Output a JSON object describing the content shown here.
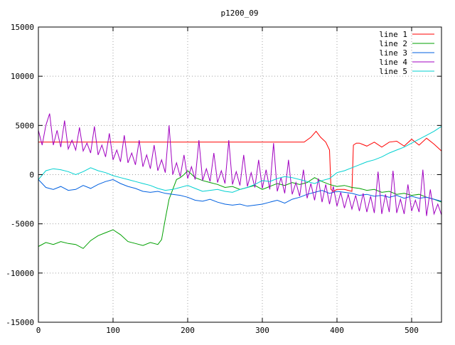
{
  "chart_data": {
    "type": "line",
    "title": "p1200_09",
    "xlabel": "",
    "ylabel": "",
    "xlim": [
      0,
      540
    ],
    "ylim": [
      -15000,
      15000
    ],
    "x_ticks": [
      0,
      100,
      200,
      300,
      400,
      500
    ],
    "y_ticks": [
      -15000,
      -10000,
      -5000,
      0,
      5000,
      10000,
      15000
    ],
    "grid": true,
    "legend_position": "top-right",
    "series": [
      {
        "name": "line 1",
        "color": "#ff0000",
        "x": [
          0,
          350,
          356,
          365,
          372,
          378,
          385,
          390,
          392,
          395,
          400,
          410,
          420,
          422,
          426,
          430,
          440,
          450,
          460,
          470,
          480,
          490,
          500,
          510,
          520,
          530,
          540
        ],
        "y": [
          3300,
          3300,
          3300,
          3800,
          4400,
          3800,
          3300,
          2500,
          -1500,
          -1700,
          -1500,
          -1500,
          -1700,
          3000,
          3200,
          3200,
          2900,
          3300,
          2800,
          3300,
          3400,
          2900,
          3600,
          3000,
          3700,
          3100,
          2400
        ]
      },
      {
        "name": "line 2",
        "color": "#00a000",
        "x": [
          0,
          10,
          20,
          30,
          40,
          50,
          60,
          70,
          80,
          90,
          100,
          110,
          120,
          130,
          140,
          150,
          160,
          165,
          170,
          175,
          180,
          185,
          190,
          195,
          200,
          210,
          220,
          230,
          240,
          250,
          260,
          270,
          280,
          290,
          300,
          310,
          320,
          330,
          340,
          350,
          360,
          370,
          380,
          390,
          400,
          410,
          420,
          430,
          440,
          450,
          460,
          470,
          480,
          490,
          500,
          510,
          520,
          530,
          540
        ],
        "y": [
          -7300,
          -6900,
          -7100,
          -6800,
          -7000,
          -7100,
          -7500,
          -6700,
          -6200,
          -5900,
          -5600,
          -6100,
          -6800,
          -7000,
          -7200,
          -6900,
          -7100,
          -6600,
          -4500,
          -2500,
          -1500,
          -500,
          -300,
          0,
          400,
          -300,
          -600,
          -800,
          -1000,
          -1300,
          -1200,
          -1500,
          -1300,
          -1100,
          -1500,
          -1200,
          -900,
          -1100,
          -800,
          -1000,
          -800,
          -300,
          -700,
          -1000,
          -1200,
          -1100,
          -1300,
          -1400,
          -1600,
          -1500,
          -1800,
          -1700,
          -2000,
          -1900,
          -2100,
          -2000,
          -2300,
          -2500,
          -2800
        ]
      },
      {
        "name": "line 3",
        "color": "#0060e0",
        "x": [
          0,
          10,
          20,
          30,
          40,
          50,
          60,
          70,
          80,
          90,
          100,
          110,
          120,
          130,
          140,
          150,
          160,
          170,
          180,
          190,
          200,
          210,
          220,
          230,
          240,
          250,
          260,
          270,
          280,
          290,
          300,
          310,
          320,
          330,
          340,
          350,
          360,
          370,
          380,
          390,
          400,
          410,
          420,
          430,
          440,
          450,
          460,
          470,
          480,
          490,
          500,
          510,
          520,
          530,
          540
        ],
        "y": [
          -500,
          -1300,
          -1500,
          -1200,
          -1600,
          -1500,
          -1100,
          -1400,
          -1000,
          -700,
          -500,
          -900,
          -1200,
          -1400,
          -1700,
          -1800,
          -1700,
          -1900,
          -2000,
          -2100,
          -2300,
          -2600,
          -2700,
          -2500,
          -2800,
          -3000,
          -3100,
          -3000,
          -3200,
          -3100,
          -3000,
          -2800,
          -2600,
          -2900,
          -2500,
          -2300,
          -2000,
          -1800,
          -1600,
          -1900,
          -1700,
          -1800,
          -1900,
          -2100,
          -2000,
          -2200,
          -2100,
          -2300,
          -2100,
          -2400,
          -2200,
          -2400,
          -2300,
          -2500,
          -2700
        ]
      },
      {
        "name": "line 4",
        "color": "#a000c0",
        "x": [
          0,
          5,
          10,
          15,
          20,
          25,
          30,
          35,
          40,
          45,
          50,
          55,
          60,
          65,
          70,
          75,
          80,
          85,
          90,
          95,
          100,
          105,
          110,
          115,
          120,
          125,
          130,
          135,
          140,
          145,
          150,
          155,
          160,
          165,
          170,
          175,
          180,
          185,
          190,
          195,
          200,
          205,
          210,
          215,
          220,
          225,
          230,
          235,
          240,
          245,
          250,
          255,
          260,
          265,
          270,
          275,
          280,
          285,
          290,
          295,
          300,
          305,
          310,
          315,
          320,
          325,
          330,
          335,
          340,
          345,
          350,
          355,
          360,
          365,
          370,
          375,
          380,
          385,
          390,
          395,
          400,
          405,
          410,
          415,
          420,
          425,
          430,
          435,
          440,
          445,
          450,
          455,
          460,
          465,
          470,
          475,
          480,
          485,
          490,
          495,
          500,
          505,
          510,
          515,
          520,
          525,
          530,
          535,
          540
        ],
        "y": [
          4500,
          3000,
          5000,
          6200,
          3000,
          4500,
          2800,
          5500,
          2600,
          3500,
          2500,
          4800,
          2400,
          3200,
          2200,
          4900,
          2000,
          3000,
          1800,
          4200,
          1500,
          2500,
          1300,
          4000,
          1200,
          2200,
          1000,
          3500,
          800,
          2000,
          600,
          3000,
          400,
          1500,
          200,
          5000,
          0,
          1200,
          -200,
          2000,
          -400,
          800,
          -500,
          3500,
          -600,
          600,
          -700,
          2200,
          -800,
          400,
          -900,
          3500,
          -1000,
          300,
          -1100,
          2000,
          -1200,
          200,
          -1300,
          1500,
          -1400,
          500,
          -1500,
          3200,
          -1700,
          -300,
          -1900,
          1500,
          -2000,
          -800,
          -2200,
          500,
          -2400,
          -900,
          -2600,
          -400,
          -2800,
          -1000,
          -3000,
          -1200,
          -3200,
          -1800,
          -3400,
          -2000,
          -3500,
          -2100,
          -3700,
          -1900,
          -3800,
          -2200,
          -3900,
          300,
          -4000,
          -2000,
          -3800,
          400,
          -3900,
          -2500,
          -4000,
          -1000,
          -3700,
          -2600,
          -3800,
          500,
          -4200,
          -1500,
          -4000,
          -3000,
          -4100
        ]
      },
      {
        "name": "line 5",
        "color": "#00d0d0",
        "x": [
          0,
          10,
          20,
          30,
          40,
          50,
          60,
          70,
          80,
          90,
          100,
          110,
          120,
          130,
          140,
          150,
          160,
          170,
          180,
          190,
          200,
          210,
          220,
          230,
          240,
          250,
          260,
          270,
          280,
          290,
          300,
          310,
          320,
          330,
          340,
          350,
          360,
          370,
          380,
          390,
          400,
          410,
          420,
          430,
          440,
          450,
          460,
          470,
          480,
          490,
          500,
          510,
          520,
          530,
          540
        ],
        "y": [
          -500,
          400,
          600,
          500,
          300,
          0,
          300,
          700,
          400,
          200,
          -100,
          -300,
          -500,
          -700,
          -900,
          -1100,
          -1400,
          -1600,
          -1500,
          -1300,
          -1100,
          -1400,
          -1700,
          -1600,
          -1500,
          -1700,
          -1800,
          -1500,
          -1300,
          -1000,
          -600,
          -700,
          -400,
          -200,
          -300,
          -500,
          -700,
          -900,
          -600,
          -400,
          200,
          400,
          700,
          1000,
          1300,
          1500,
          1800,
          2200,
          2500,
          2800,
          3200,
          3600,
          4000,
          4400,
          4900
        ]
      }
    ]
  }
}
